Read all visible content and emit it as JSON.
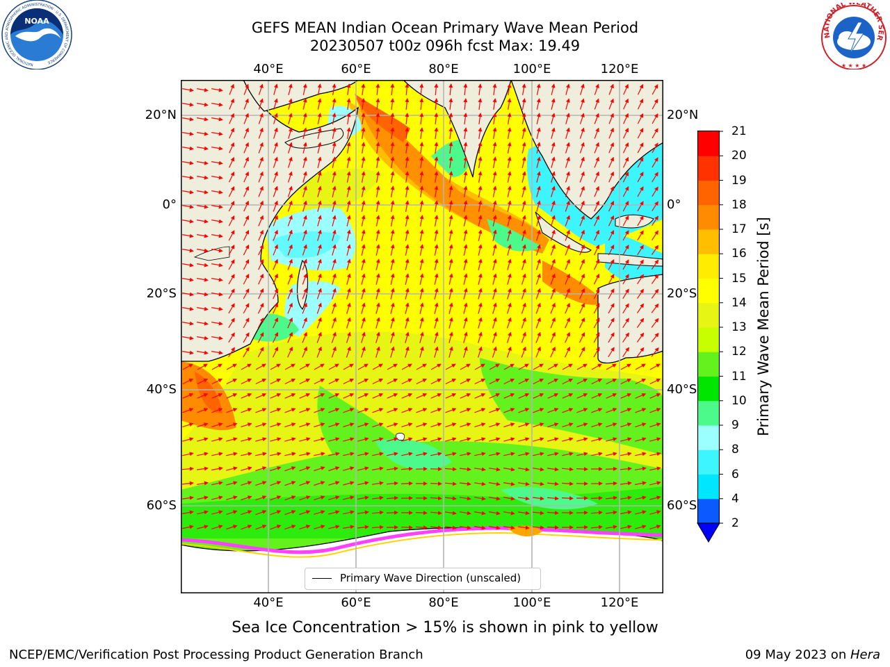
{
  "header": {
    "title_line1": "GEFS MEAN Indian Ocean Primary Wave Mean Period",
    "title_line2": "20230507 t00z 096h fcst   Max: 19.49"
  },
  "logos": {
    "left": {
      "name": "noaa-logo",
      "text": "NOAA",
      "ring_text": "NATIONAL OCEANIC AND ATMOSPHERIC ADMINISTRATION · U.S. DEPARTMENT OF COMMERCE"
    },
    "right": {
      "name": "nws-logo",
      "ring_text": "NATIONAL WEATHER SERVICE"
    }
  },
  "map": {
    "lon_labels": [
      "40°E",
      "60°E",
      "80°E",
      "100°E",
      "120°E"
    ],
    "lon_values": [
      40,
      60,
      80,
      100,
      120
    ],
    "lat_labels": [
      "20°N",
      "0°",
      "20°S",
      "40°S",
      "60°S"
    ],
    "lat_values": [
      20,
      0,
      -20,
      -40,
      -60
    ],
    "extent": {
      "lon_min": 20,
      "lon_max": 130,
      "lat_min": -72,
      "lat_max": 28
    },
    "legend_text": "Primary Wave Direction (unscaled)",
    "arrow_color": "#ff0000",
    "land_color": "#efeedc",
    "grid_color": "#b4b4b4"
  },
  "colorbar": {
    "title": "Primary Wave Mean Period [s]",
    "ticks": [
      "2",
      "4",
      "6",
      "8",
      "9",
      "10",
      "11",
      "12",
      "13",
      "14",
      "15",
      "16",
      "17",
      "18",
      "19",
      "20",
      "21"
    ],
    "colors": [
      "#0a5aff",
      "#00e6ff",
      "#3cf5ff",
      "#9cffff",
      "#4cfa8c",
      "#00e600",
      "#64f21e",
      "#c8ff00",
      "#e6f514",
      "#ffff00",
      "#ffec00",
      "#ffbe00",
      "#ff8c00",
      "#ff6400",
      "#ff3200",
      "#ff0000"
    ],
    "under_color": "#0000ff"
  },
  "caption": "Sea Ice Concentration > 15% is shown in pink to yellow",
  "footer": {
    "left": "NCEP/EMC/Verification Post Processing Product Generation Branch",
    "right_date": "09 May 2023 on ",
    "right_machine": "Hera"
  }
}
